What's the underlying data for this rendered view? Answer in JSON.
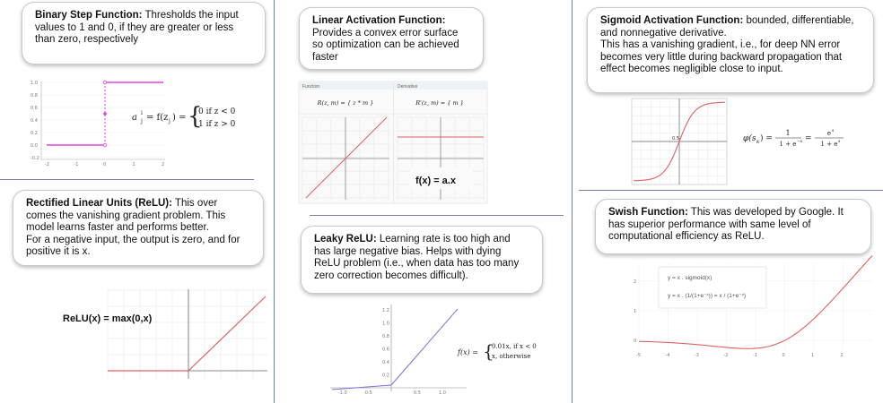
{
  "binary": {
    "title": "Binary Step Function:",
    "text": " Thresholds the input values to 1 and 0, if they are greater or less than zero, respectively",
    "formula_lhs": "a",
    "formula_case1": "0   if z < 0",
    "formula_case2": "1   if z > 0",
    "y_ticks": [
      "1.0",
      "0.8",
      "0.6",
      "0.4",
      "0.2",
      "0.0",
      "-0.2"
    ],
    "x_ticks": [
      "-2",
      "-1",
      "0",
      "1",
      "2"
    ],
    "color": "#e040e0"
  },
  "relu": {
    "title": "Rectified Linear Units (ReLU):",
    "text": " This over comes the vanishing gradient problem. This model learns faster and performs better.\nFor a negative input, the output is zero, and for positive it is x.",
    "label": "ReLU(x) = max(0,x)",
    "color": "#e06060"
  },
  "linear": {
    "title": "Linear Activation Function:",
    "text": "Provides a convex error surface so optimization can be achieved faster",
    "panel_function": "Function",
    "panel_derivative": "Derivative",
    "eq_function": "R(z, m) = { z * m }",
    "eq_derivative": "R'(z, m) = { m }",
    "label": "f(x) = a.x",
    "color": "#e06060"
  },
  "leaky": {
    "title": "Leaky ReLU:",
    "text": " Learning rate is too high and has large negative bias. Helps with dying ReLU problem (i.e., when data has too many zero correction becomes difficult).",
    "y_ticks": [
      "1.2",
      "1.0",
      "0.8",
      "0.6",
      "0.4",
      "0.2"
    ],
    "x_ticks": [
      "-1.0",
      "-0.5",
      "0.5",
      "1.0"
    ],
    "formula_lhs": "f(x) =",
    "formula_case1": "0.01x,   if x < 0",
    "formula_case2": "x,         otherwise",
    "color": "#7b6fd6"
  },
  "sigmoid": {
    "title": "Sigmoid Activation Function:",
    "text": " bounded, differentiable, and nonnegative derivative.\nThis has a vanishing gradient, i.e., for deep NN error becomes very little during backward propagation  that effect becomes negligible close to input.",
    "formula": "φ(s) = 1 / (1 + e^-s) = e^s / (1 + e^s)",
    "tick_label": "0.5",
    "color": "#e06060"
  },
  "swish": {
    "title": "Swish Function:",
    "text": " This was developed by Google. It has superior performance with same level of computational efficiency as ReLU.",
    "legend1": "y = x . sigmoid(x)",
    "legend2": "y = x . (1/(1+e⁻ˣ)) = x / (1+e⁻ˣ)",
    "y_ticks": [
      "2",
      "1",
      "0"
    ],
    "x_ticks": [
      "-5",
      "-4",
      "-3",
      "-2",
      "-1",
      "0",
      "1",
      "2"
    ],
    "color": "#e06060"
  }
}
